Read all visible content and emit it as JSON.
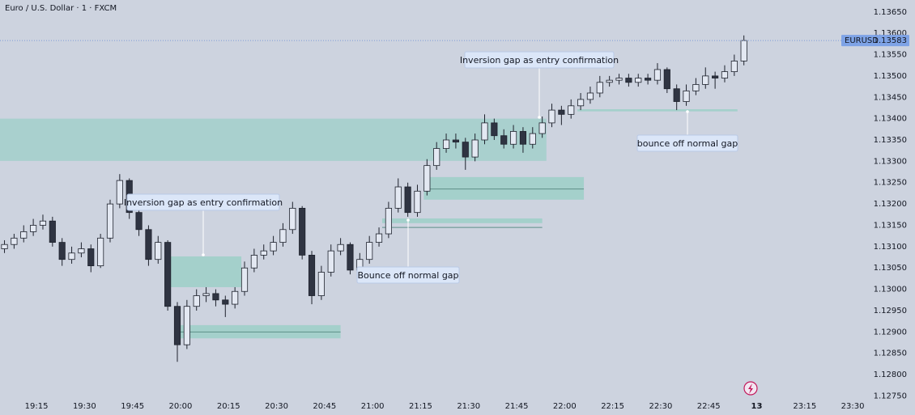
{
  "chart_data": {
    "type": "candlestick",
    "title": "Euro / U.S. Dollar · 1 · FXCM",
    "symbol": "EURUSD",
    "last_price": 1.13583,
    "up_color": "#e3e8f2",
    "down_color": "#2f3442",
    "wick_color": "#1e222d",
    "zone_color": "#9ccfc8",
    "grid": false,
    "xlim": [
      3.6,
      276.3
    ],
    "ylim": [
      1.12749,
      1.13678
    ],
    "xticks": [
      {
        "value": 15,
        "label": "19:15"
      },
      {
        "value": 30,
        "label": "19:30"
      },
      {
        "value": 45,
        "label": "19:45"
      },
      {
        "value": 60,
        "label": "20:00"
      },
      {
        "value": 75,
        "label": "20:15"
      },
      {
        "value": 90,
        "label": "20:30"
      },
      {
        "value": 105,
        "label": "20:45"
      },
      {
        "value": 120,
        "label": "21:00"
      },
      {
        "value": 135,
        "label": "21:15"
      },
      {
        "value": 150,
        "label": "21:30"
      },
      {
        "value": 165,
        "label": "21:45"
      },
      {
        "value": 180,
        "label": "22:00"
      },
      {
        "value": 195,
        "label": "22:15"
      },
      {
        "value": 210,
        "label": "22:30"
      },
      {
        "value": 225,
        "label": "22:45"
      },
      {
        "value": 240,
        "label": "13"
      },
      {
        "value": 255,
        "label": "23:15"
      },
      {
        "value": 270,
        "label": "23:30"
      }
    ],
    "yticks": [
      {
        "value": 1.1275,
        "label": "1.12750"
      },
      {
        "value": 1.128,
        "label": "1.12800"
      },
      {
        "value": 1.1285,
        "label": "1.12850"
      },
      {
        "value": 1.129,
        "label": "1.12900"
      },
      {
        "value": 1.1295,
        "label": "1.12950"
      },
      {
        "value": 1.13,
        "label": "1.13000"
      },
      {
        "value": 1.1305,
        "label": "1.13050"
      },
      {
        "value": 1.131,
        "label": "1.13100"
      },
      {
        "value": 1.1315,
        "label": "1.13150"
      },
      {
        "value": 1.132,
        "label": "1.13200"
      },
      {
        "value": 1.1325,
        "label": "1.13250"
      },
      {
        "value": 1.133,
        "label": "1.13300"
      },
      {
        "value": 1.1335,
        "label": "1.13350"
      },
      {
        "value": 1.134,
        "label": "1.13400"
      },
      {
        "value": 1.1345,
        "label": "1.13450"
      },
      {
        "value": 1.135,
        "label": "1.13500"
      },
      {
        "value": 1.1355,
        "label": "1.13550"
      },
      {
        "value": 1.136,
        "label": "1.13600"
      },
      {
        "value": 1.1365,
        "label": "1.13650"
      }
    ],
    "x": [
      5,
      8,
      11,
      14,
      17,
      20,
      23,
      26,
      29,
      32,
      35,
      38,
      41,
      44,
      47,
      50,
      53,
      56,
      59,
      62,
      65,
      68,
      71,
      74,
      77,
      80,
      83,
      86,
      89,
      92,
      95,
      98,
      101,
      104,
      107,
      110,
      113,
      116,
      119,
      122,
      125,
      128,
      131,
      134,
      137,
      140,
      143,
      146,
      149,
      152,
      155,
      158,
      161,
      164,
      167,
      170,
      173,
      176,
      179,
      182,
      185,
      188,
      191,
      194,
      197,
      200,
      203,
      206,
      209,
      212,
      215,
      218,
      221,
      224,
      227,
      230,
      233,
      236
    ],
    "open": [
      1.13095,
      1.13105,
      1.1312,
      1.13135,
      1.1315,
      1.1316,
      1.1311,
      1.1307,
      1.13085,
      1.13095,
      1.13055,
      1.1312,
      1.132,
      1.13255,
      1.1318,
      1.1314,
      1.1307,
      1.1311,
      1.1296,
      1.1287,
      1.1296,
      1.12985,
      1.1299,
      1.12975,
      1.12965,
      1.12995,
      1.1305,
      1.1308,
      1.1309,
      1.1311,
      1.1314,
      1.1319,
      1.1308,
      1.12985,
      1.1304,
      1.1309,
      1.13105,
      1.13045,
      1.1307,
      1.1311,
      1.1313,
      1.1319,
      1.1324,
      1.1318,
      1.1323,
      1.1329,
      1.1333,
      1.1335,
      1.13345,
      1.1331,
      1.1335,
      1.1339,
      1.1336,
      1.1334,
      1.1337,
      1.1334,
      1.13365,
      1.1339,
      1.1342,
      1.1341,
      1.1343,
      1.13445,
      1.1346,
      1.13485,
      1.1349,
      1.13495,
      1.13485,
      1.13495,
      1.1349,
      1.13515,
      1.1347,
      1.1344,
      1.13465,
      1.1348,
      1.135,
      1.13495,
      1.1351,
      1.13535
    ],
    "high": [
      1.13115,
      1.1313,
      1.1315,
      1.13165,
      1.13175,
      1.1317,
      1.1312,
      1.131,
      1.1311,
      1.13105,
      1.1313,
      1.1321,
      1.1327,
      1.1326,
      1.1319,
      1.1315,
      1.13125,
      1.13115,
      1.1297,
      1.12975,
      1.13,
      1.13005,
      1.13,
      1.12985,
      1.13005,
      1.13065,
      1.13095,
      1.13105,
      1.13125,
      1.13155,
      1.13205,
      1.13195,
      1.1309,
      1.13055,
      1.13105,
      1.1312,
      1.1311,
      1.13085,
      1.13125,
      1.13145,
      1.13205,
      1.1326,
      1.1325,
      1.13245,
      1.13305,
      1.13345,
      1.13365,
      1.13365,
      1.13355,
      1.13365,
      1.1341,
      1.134,
      1.13375,
      1.13385,
      1.1338,
      1.1338,
      1.13405,
      1.13435,
      1.1343,
      1.13445,
      1.1346,
      1.13475,
      1.135,
      1.135,
      1.13505,
      1.13505,
      1.13505,
      1.13505,
      1.1353,
      1.1352,
      1.1348,
      1.1348,
      1.13495,
      1.1352,
      1.1351,
      1.13525,
      1.1355,
      1.13595
    ],
    "low": [
      1.13085,
      1.13095,
      1.1311,
      1.13125,
      1.1314,
      1.131,
      1.13055,
      1.1306,
      1.13075,
      1.1304,
      1.1305,
      1.1311,
      1.1319,
      1.13165,
      1.13125,
      1.13055,
      1.1306,
      1.1295,
      1.1283,
      1.1286,
      1.1295,
      1.1297,
      1.1296,
      1.12935,
      1.12955,
      1.12985,
      1.1304,
      1.1307,
      1.1308,
      1.131,
      1.1313,
      1.1307,
      1.12965,
      1.12975,
      1.1303,
      1.1308,
      1.13035,
      1.13035,
      1.1306,
      1.131,
      1.1312,
      1.1318,
      1.1317,
      1.1317,
      1.1322,
      1.1328,
      1.1332,
      1.1333,
      1.1328,
      1.133,
      1.1334,
      1.1335,
      1.1333,
      1.1333,
      1.1332,
      1.1333,
      1.13355,
      1.1338,
      1.13385,
      1.134,
      1.1342,
      1.13435,
      1.1345,
      1.13475,
      1.1348,
      1.13475,
      1.13475,
      1.1348,
      1.1348,
      1.1346,
      1.1342,
      1.1343,
      1.13455,
      1.1347,
      1.1347,
      1.13485,
      1.135,
      1.13525
    ],
    "close": [
      1.13105,
      1.1312,
      1.13135,
      1.1315,
      1.1316,
      1.1311,
      1.1307,
      1.13085,
      1.13095,
      1.13055,
      1.1312,
      1.132,
      1.13255,
      1.1318,
      1.1314,
      1.1307,
      1.1311,
      1.1296,
      1.1287,
      1.1296,
      1.12985,
      1.1299,
      1.12975,
      1.12965,
      1.12995,
      1.1305,
      1.1308,
      1.1309,
      1.1311,
      1.1314,
      1.1319,
      1.1308,
      1.12985,
      1.1304,
      1.1309,
      1.13105,
      1.13045,
      1.1307,
      1.1311,
      1.1313,
      1.1319,
      1.1324,
      1.1318,
      1.1323,
      1.1329,
      1.1333,
      1.1335,
      1.13345,
      1.1331,
      1.1335,
      1.1339,
      1.1336,
      1.1334,
      1.1337,
      1.1334,
      1.13365,
      1.1339,
      1.1342,
      1.1341,
      1.1343,
      1.13445,
      1.1346,
      1.13485,
      1.1349,
      1.13495,
      1.13485,
      1.13495,
      1.1349,
      1.13515,
      1.1347,
      1.1344,
      1.13465,
      1.1348,
      1.135,
      1.13495,
      1.1351,
      1.13535,
      1.13583
    ],
    "zones": [
      {
        "x0": 3.6,
        "x1": 174.3,
        "y0": 1.13301,
        "y1": 1.134
      },
      {
        "x0": 55,
        "x1": 79,
        "y0": 1.13005,
        "y1": 1.13077
      },
      {
        "x0": 60,
        "x1": 110,
        "y0": 1.12885,
        "y1": 1.12916,
        "mid": 1.129
      },
      {
        "x0": 136,
        "x1": 186,
        "y0": 1.1321,
        "y1": 1.13263,
        "mid": 1.13235
      },
      {
        "x0": 123,
        "x1": 173,
        "y0": 1.13155,
        "y1": 1.13166,
        "mid": 1.13145
      },
      {
        "x0": 184,
        "x1": 234,
        "y0": 1.13417,
        "y1": 1.13422
      }
    ],
    "annotations": [
      "Inversion gap as entry confirmation",
      "bounce off normal gap",
      "Inversion gap as entry confirmation",
      "Bounce off normal gap"
    ]
  }
}
